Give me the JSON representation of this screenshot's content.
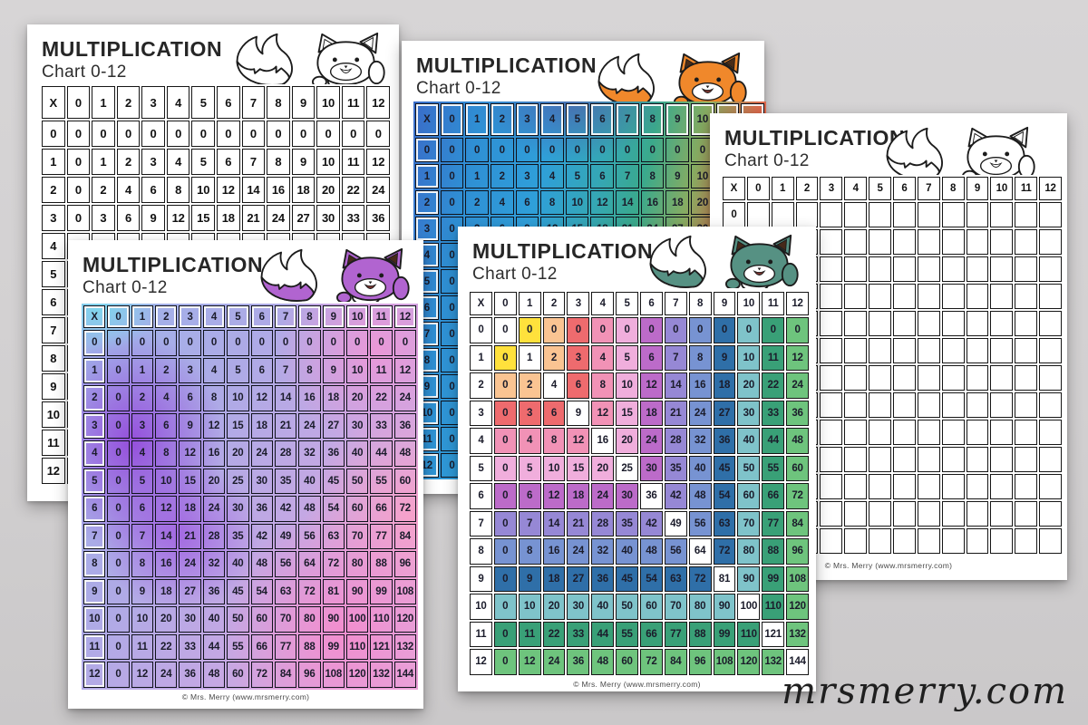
{
  "desk": {
    "background_color": "#d2d0d1",
    "logo_text": "mrsmerry.com",
    "logo_color": "#1f1f1f"
  },
  "shared": {
    "title": "MULTIPLICATION",
    "subtitle": "Chart 0-12",
    "credit": "© Mrs. Merry (www.mrsmerry.com)",
    "table_header": [
      "X",
      "0",
      "1",
      "2",
      "3",
      "4",
      "5",
      "6",
      "7",
      "8",
      "9",
      "10",
      "11",
      "12"
    ],
    "row_labels": [
      "0",
      "1",
      "2",
      "3",
      "4",
      "5",
      "6",
      "7",
      "8",
      "9",
      "10",
      "11",
      "12"
    ],
    "multiplication_rows": [
      [
        0,
        0,
        0,
        0,
        0,
        0,
        0,
        0,
        0,
        0,
        0,
        0,
        0,
        0
      ],
      [
        1,
        0,
        1,
        2,
        3,
        4,
        5,
        6,
        7,
        8,
        9,
        10,
        11,
        12
      ],
      [
        2,
        0,
        2,
        4,
        6,
        8,
        10,
        12,
        14,
        16,
        18,
        20,
        22,
        24
      ],
      [
        3,
        0,
        3,
        6,
        9,
        12,
        15,
        18,
        21,
        24,
        27,
        30,
        33,
        36
      ],
      [
        4,
        0,
        4,
        8,
        12,
        16,
        20,
        24,
        28,
        32,
        36,
        40,
        44,
        48
      ],
      [
        5,
        0,
        5,
        10,
        15,
        20,
        25,
        30,
        35,
        40,
        45,
        50,
        55,
        60
      ],
      [
        6,
        0,
        6,
        12,
        18,
        24,
        30,
        36,
        42,
        48,
        54,
        60,
        66,
        72
      ],
      [
        7,
        0,
        7,
        14,
        21,
        28,
        35,
        42,
        49,
        56,
        63,
        70,
        77,
        84
      ],
      [
        8,
        0,
        8,
        16,
        24,
        32,
        40,
        48,
        56,
        64,
        72,
        80,
        88,
        96
      ],
      [
        9,
        0,
        9,
        18,
        27,
        36,
        45,
        54,
        63,
        72,
        81,
        90,
        99,
        108
      ],
      [
        10,
        0,
        10,
        20,
        30,
        40,
        50,
        60,
        70,
        80,
        90,
        100,
        110,
        120
      ],
      [
        11,
        0,
        11,
        22,
        33,
        44,
        55,
        66,
        77,
        88,
        99,
        110,
        121,
        132
      ],
      [
        12,
        0,
        12,
        24,
        36,
        48,
        60,
        72,
        84,
        96,
        108,
        120,
        132,
        144
      ]
    ]
  },
  "sheets": [
    {
      "name": "black-and-white-chart",
      "variant": "plain",
      "fox": {
        "body": "#ffffff",
        "ear_inner": "#ffffff",
        "mouth": "#ffffff"
      }
    },
    {
      "name": "rainbow-gradient-chart",
      "variant": "gradient",
      "fox": {
        "body": "#f0882b",
        "ear_inner": "#4a2c17",
        "mouth": "#7c342f"
      },
      "palette": {
        "blue": "#3a6cc8",
        "cyan": "#2f9fd9",
        "teal": "#3aa98c",
        "red": "#ef4f44",
        "orange": "#f2753f"
      }
    },
    {
      "name": "blank-practice-chart",
      "variant": "blank",
      "fox": {
        "body": "#ffffff",
        "ear_inner": "#ffffff",
        "mouth": "#ffffff"
      }
    },
    {
      "name": "purple-watercolor-chart",
      "variant": "gradient",
      "fox": {
        "body": "#b164d0",
        "ear_inner": "#46291a",
        "mouth": "#7c342f"
      },
      "palette": {
        "cyan": "#7fd6ec",
        "purple": "#9a54db",
        "periwinkle": "#aeaae6",
        "pink": "#f48ccd"
      }
    },
    {
      "name": "green-factor-color-chart",
      "variant": "max-color",
      "fox": {
        "body": "#569183",
        "ear_inner": "#46291a",
        "mouth": "#7c342f"
      },
      "diagonal_color": "#ffffff",
      "palette": [
        "#ffffff",
        "#ffe13c",
        "#fac492",
        "#ee6b6e",
        "#f192b6",
        "#f0aedc",
        "#bc6bc9",
        "#9688d5",
        "#7793d2",
        "#2f6fa8",
        "#7fc3ca",
        "#39a077",
        "#6ec47d"
      ]
    }
  ]
}
